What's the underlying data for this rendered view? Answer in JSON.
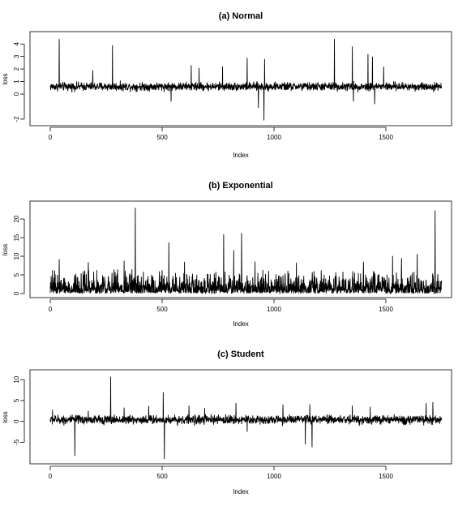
{
  "chart_data": [
    {
      "type": "line",
      "title": "(a) Normal",
      "xlabel": "Index",
      "ylabel": "loss",
      "xlim": [
        0,
        1750
      ],
      "ylim": [
        -2.2,
        4.6
      ],
      "xticks": [
        0,
        500,
        1000,
        1500
      ],
      "yticks": [
        -2,
        0,
        1,
        2,
        3,
        4
      ],
      "n": 1750,
      "baseline": 0.6,
      "noise_amplitude": 0.28,
      "spikes": [
        {
          "x": 40,
          "y": 4.4
        },
        {
          "x": 190,
          "y": 1.9
        },
        {
          "x": 278,
          "y": 3.9
        },
        {
          "x": 540,
          "y": -0.6
        },
        {
          "x": 630,
          "y": 2.3
        },
        {
          "x": 665,
          "y": 2.1
        },
        {
          "x": 770,
          "y": 2.2
        },
        {
          "x": 880,
          "y": 2.9
        },
        {
          "x": 930,
          "y": -1.1
        },
        {
          "x": 955,
          "y": -2.1
        },
        {
          "x": 958,
          "y": 2.8
        },
        {
          "x": 1270,
          "y": 4.4
        },
        {
          "x": 1350,
          "y": 3.8
        },
        {
          "x": 1355,
          "y": -0.6
        },
        {
          "x": 1420,
          "y": 3.2
        },
        {
          "x": 1440,
          "y": 3.0
        },
        {
          "x": 1450,
          "y": -0.8
        },
        {
          "x": 1490,
          "y": 2.2
        }
      ]
    },
    {
      "type": "line",
      "title": "(b) Exponential",
      "xlabel": "Index",
      "ylabel": "loss",
      "xlim": [
        0,
        1750
      ],
      "ylim": [
        0,
        23.5
      ],
      "xticks": [
        0,
        500,
        1000,
        1500
      ],
      "yticks": [
        0,
        5,
        10,
        15,
        20
      ],
      "n": 1750,
      "baseline": 2.0,
      "noise_amplitude": 4.5,
      "spikes": [
        {
          "x": 20,
          "y": 6.2
        },
        {
          "x": 40,
          "y": 9.2
        },
        {
          "x": 170,
          "y": 8.4
        },
        {
          "x": 330,
          "y": 8.8
        },
        {
          "x": 380,
          "y": 23.0
        },
        {
          "x": 530,
          "y": 13.7
        },
        {
          "x": 600,
          "y": 8.5
        },
        {
          "x": 775,
          "y": 15.9
        },
        {
          "x": 820,
          "y": 11.6
        },
        {
          "x": 855,
          "y": 16.2
        },
        {
          "x": 915,
          "y": 8.6
        },
        {
          "x": 1100,
          "y": 8.3
        },
        {
          "x": 1400,
          "y": 8.5
        },
        {
          "x": 1530,
          "y": 10.1
        },
        {
          "x": 1570,
          "y": 9.5
        },
        {
          "x": 1640,
          "y": 10.6
        },
        {
          "x": 1720,
          "y": 22.3
        }
      ]
    },
    {
      "type": "line",
      "title": "(c) Student",
      "xlabel": "Index",
      "ylabel": "loss",
      "xlim": [
        0,
        1750
      ],
      "ylim": [
        -9.2,
        11.2
      ],
      "xticks": [
        0,
        500,
        1000,
        1500
      ],
      "yticks": [
        -5,
        0,
        5,
        10
      ],
      "n": 1750,
      "baseline": 0.4,
      "noise_amplitude": 0.9,
      "spikes": [
        {
          "x": 10,
          "y": 2.8
        },
        {
          "x": 110,
          "y": -8.3
        },
        {
          "x": 170,
          "y": 2.5
        },
        {
          "x": 270,
          "y": 10.7
        },
        {
          "x": 330,
          "y": 3.3
        },
        {
          "x": 440,
          "y": 3.7
        },
        {
          "x": 505,
          "y": 7.0
        },
        {
          "x": 510,
          "y": -9.0
        },
        {
          "x": 620,
          "y": 3.8
        },
        {
          "x": 690,
          "y": 3.2
        },
        {
          "x": 830,
          "y": 4.4
        },
        {
          "x": 880,
          "y": -2.5
        },
        {
          "x": 1040,
          "y": 4.0
        },
        {
          "x": 1140,
          "y": -5.5
        },
        {
          "x": 1170,
          "y": -6.2
        },
        {
          "x": 1160,
          "y": 4.1
        },
        {
          "x": 1350,
          "y": 3.8
        },
        {
          "x": 1430,
          "y": 3.5
        },
        {
          "x": 1680,
          "y": 4.4
        },
        {
          "x": 1710,
          "y": 4.6
        }
      ]
    }
  ]
}
